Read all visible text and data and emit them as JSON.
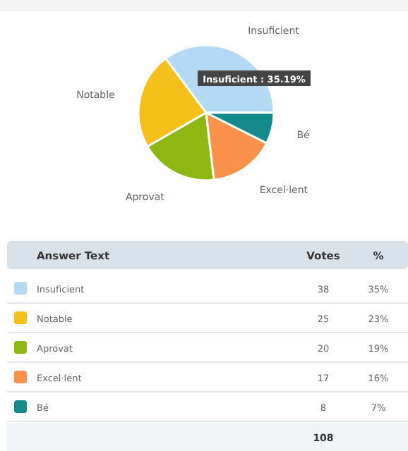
{
  "chart_data": {
    "type": "pie",
    "categories": [
      "Insuficient",
      "Notable",
      "Aprovat",
      "Excel·lent",
      "Bé"
    ],
    "values": [
      38,
      25,
      20,
      17,
      8
    ],
    "colors": [
      "#b3d9f5",
      "#f6c01a",
      "#8db814",
      "#fb914a",
      "#148a8c"
    ],
    "data_labels": true,
    "legend": "bottom",
    "annotations": [
      "Insuficient : 35.19%",
      "Answer Text",
      "Votes",
      "%",
      "35%",
      "23%",
      "19%",
      "16%",
      "7%",
      "108"
    ]
  }
}
